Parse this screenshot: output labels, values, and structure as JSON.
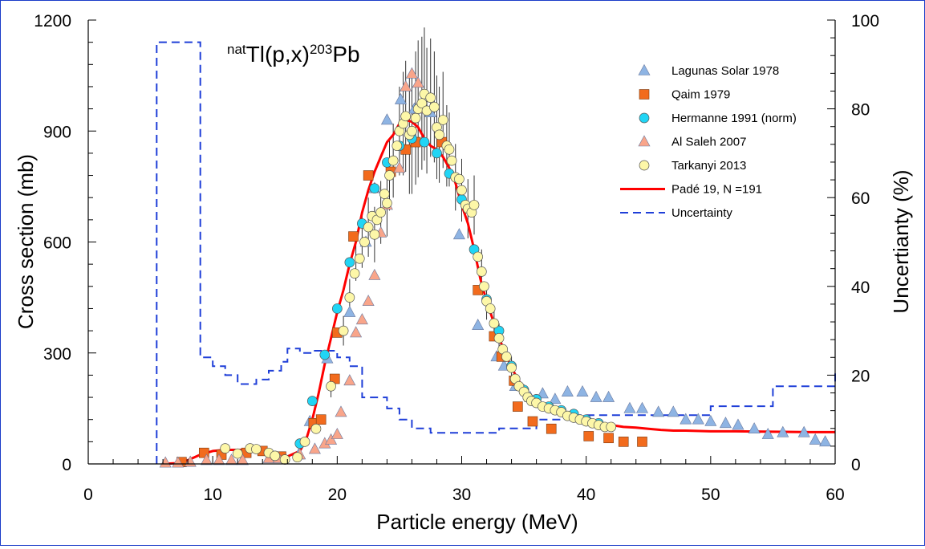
{
  "chart_data": {
    "type": "scatter",
    "title": {
      "sup1": "nat",
      "main1": "Tl(p,x)",
      "sup2": "203",
      "main2": "Pb"
    },
    "xlabel": "Particle energy (MeV)",
    "ylabel": "Cross section (mb)",
    "y2label": "Uncertianty (%)",
    "xlim": [
      0,
      60
    ],
    "ylim": [
      0,
      1200
    ],
    "y2lim": [
      0,
      100
    ],
    "x_ticks": [
      0,
      10,
      20,
      30,
      40,
      50,
      60
    ],
    "y_ticks": [
      0,
      300,
      600,
      900,
      1200
    ],
    "y2_ticks": [
      0,
      20,
      40,
      60,
      80,
      100
    ],
    "legend_position": "top-right",
    "colors": {
      "lagunas": "#8eb4e3",
      "qaim": "#f26b1d",
      "hermanne": "#21d5f5",
      "alsaleh": "#f9a58a",
      "tarkanyi": "#fdf7a8",
      "fit": "#ff0000",
      "uncertainty": "#1f3fd8",
      "frame": "#1a3cc8"
    },
    "series": [
      {
        "name": "Lagunas Solar 1978",
        "marker": "triangle",
        "color_key": "lagunas",
        "points": [
          [
            16.9,
            25
          ],
          [
            17.8,
            115
          ],
          [
            19.2,
            285
          ],
          [
            21.0,
            410
          ],
          [
            22.3,
            600
          ],
          [
            23.0,
            745
          ],
          [
            24.0,
            930
          ],
          [
            25.1,
            985
          ],
          [
            26.2,
            960
          ],
          [
            27.5,
            950
          ],
          [
            29.8,
            620
          ],
          [
            31.3,
            375
          ],
          [
            32.8,
            290
          ],
          [
            33.4,
            265
          ],
          [
            34.3,
            210
          ],
          [
            35.5,
            180
          ],
          [
            36.5,
            190
          ],
          [
            37.5,
            175
          ],
          [
            38.5,
            195
          ],
          [
            39.7,
            195
          ],
          [
            40.8,
            180
          ],
          [
            41.8,
            180
          ],
          [
            43.5,
            150
          ],
          [
            44.5,
            150
          ],
          [
            45.8,
            140
          ],
          [
            47.0,
            140
          ],
          [
            48.0,
            120
          ],
          [
            49.0,
            120
          ],
          [
            50.0,
            115
          ],
          [
            51.2,
            110
          ],
          [
            52.2,
            105
          ],
          [
            53.5,
            95
          ],
          [
            54.6,
            80
          ],
          [
            55.8,
            85
          ],
          [
            57.5,
            85
          ],
          [
            58.4,
            65
          ],
          [
            59.2,
            60
          ]
        ]
      },
      {
        "name": "Qaim 1979",
        "marker": "square",
        "color_key": "qaim",
        "points": [
          [
            7.5,
            5
          ],
          [
            9.3,
            30
          ],
          [
            10.7,
            25
          ],
          [
            12.7,
            30
          ],
          [
            14.0,
            35
          ],
          [
            15.5,
            20
          ],
          [
            18.1,
            110
          ],
          [
            18.7,
            120
          ],
          [
            19.8,
            230
          ],
          [
            20.0,
            355
          ],
          [
            21.3,
            615
          ],
          [
            22.5,
            780
          ],
          [
            24.3,
            790
          ],
          [
            25.5,
            850
          ],
          [
            26.3,
            870
          ],
          [
            28.4,
            870
          ],
          [
            31.3,
            470
          ],
          [
            32.6,
            345
          ],
          [
            33.2,
            290
          ],
          [
            34.2,
            225
          ],
          [
            34.5,
            155
          ],
          [
            35.7,
            115
          ],
          [
            37.2,
            95
          ],
          [
            40.2,
            75
          ],
          [
            41.8,
            70
          ],
          [
            43.0,
            60
          ],
          [
            44.5,
            60
          ]
        ]
      },
      {
        "name": "Hermanne 1991 (norm)",
        "marker": "circle",
        "color_key": "hermanne",
        "points": [
          [
            17.0,
            55
          ],
          [
            18.0,
            170
          ],
          [
            19.0,
            295
          ],
          [
            20.0,
            420
          ],
          [
            21.0,
            545
          ],
          [
            22.0,
            650
          ],
          [
            23.0,
            745
          ],
          [
            24.0,
            815
          ],
          [
            25.0,
            860
          ],
          [
            26.0,
            880
          ],
          [
            27.0,
            870
          ],
          [
            28.0,
            840
          ],
          [
            29.0,
            785
          ],
          [
            30.0,
            715
          ],
          [
            31.0,
            580
          ],
          [
            32.0,
            445
          ],
          [
            33.0,
            360
          ],
          [
            34.0,
            265
          ],
          [
            35.0,
            200
          ],
          [
            36.0,
            175
          ],
          [
            37.0,
            155
          ],
          [
            38.0,
            145
          ],
          [
            39.0,
            135
          ],
          [
            40.0,
            120
          ],
          [
            41.0,
            110
          ]
        ]
      },
      {
        "name": "Al Saleh 2007",
        "marker": "triangle",
        "color_key": "alsaleh",
        "points": [
          [
            6.2,
            3
          ],
          [
            7.2,
            3
          ],
          [
            8.2,
            5
          ],
          [
            9.5,
            10
          ],
          [
            10.5,
            10
          ],
          [
            11.5,
            10
          ],
          [
            12.4,
            10
          ],
          [
            14.5,
            15
          ],
          [
            15.3,
            15
          ],
          [
            17.0,
            25
          ],
          [
            18.2,
            40
          ],
          [
            19.0,
            55
          ],
          [
            19.5,
            65
          ],
          [
            20.0,
            80
          ],
          [
            20.3,
            140
          ],
          [
            21.0,
            225
          ],
          [
            21.5,
            355
          ],
          [
            22.0,
            390
          ],
          [
            22.5,
            440
          ],
          [
            23.0,
            510
          ],
          [
            23.5,
            625
          ],
          [
            24.0,
            700
          ],
          [
            25.0,
            800
          ],
          [
            25.5,
            1020
          ],
          [
            26.0,
            1055
          ],
          [
            26.5,
            1030
          ],
          [
            27.0,
            960
          ]
        ]
      },
      {
        "name": "Tarkanyi 2013",
        "marker": "circle",
        "color_key": "tarkanyi",
        "points": [
          [
            11.0,
            42
          ],
          [
            12.0,
            28
          ],
          [
            13.0,
            42
          ],
          [
            13.5,
            40
          ],
          [
            14.5,
            30
          ],
          [
            15.0,
            22
          ],
          [
            15.8,
            12
          ],
          [
            16.8,
            18
          ],
          [
            17.4,
            60
          ],
          [
            18.3,
            95
          ],
          [
            19.5,
            210
          ],
          [
            20.5,
            360
          ],
          [
            21.0,
            450
          ],
          [
            21.4,
            515
          ],
          [
            21.8,
            555
          ],
          [
            22.2,
            600
          ],
          [
            22.5,
            640
          ],
          [
            22.8,
            670
          ],
          [
            23.0,
            620
          ],
          [
            23.2,
            660
          ],
          [
            23.5,
            680
          ],
          [
            23.8,
            730
          ],
          [
            24.0,
            705
          ],
          [
            24.2,
            780
          ],
          [
            24.5,
            820
          ],
          [
            24.8,
            860
          ],
          [
            25.0,
            900
          ],
          [
            25.3,
            920
          ],
          [
            25.5,
            940
          ],
          [
            25.8,
            890
          ],
          [
            26.0,
            900
          ],
          [
            26.3,
            935
          ],
          [
            26.5,
            960
          ],
          [
            26.8,
            975
          ],
          [
            27.0,
            1000
          ],
          [
            27.2,
            955
          ],
          [
            27.5,
            990
          ],
          [
            27.8,
            965
          ],
          [
            28.0,
            910
          ],
          [
            28.2,
            890
          ],
          [
            28.5,
            930
          ],
          [
            28.8,
            860
          ],
          [
            29.0,
            850
          ],
          [
            29.2,
            820
          ],
          [
            29.5,
            775
          ],
          [
            29.8,
            770
          ],
          [
            30.0,
            740
          ],
          [
            30.3,
            700
          ],
          [
            30.5,
            690
          ],
          [
            30.8,
            680
          ],
          [
            31.0,
            700
          ],
          [
            31.3,
            560
          ],
          [
            31.6,
            520
          ],
          [
            31.8,
            480
          ],
          [
            32.0,
            440
          ],
          [
            32.3,
            420
          ],
          [
            32.6,
            380
          ],
          [
            33.0,
            340
          ],
          [
            33.3,
            310
          ],
          [
            33.6,
            290
          ],
          [
            34.0,
            260
          ],
          [
            34.3,
            230
          ],
          [
            34.6,
            210
          ],
          [
            35.0,
            195
          ],
          [
            35.3,
            180
          ],
          [
            35.6,
            170
          ],
          [
            36.0,
            165
          ],
          [
            36.5,
            155
          ],
          [
            37.0,
            150
          ],
          [
            37.5,
            145
          ],
          [
            38.0,
            140
          ],
          [
            38.5,
            130
          ],
          [
            39.0,
            125
          ],
          [
            39.5,
            120
          ],
          [
            40.0,
            115
          ],
          [
            40.5,
            110
          ],
          [
            41.0,
            105
          ],
          [
            41.5,
            100
          ],
          [
            42.0,
            100
          ]
        ]
      }
    ],
    "error_points": [
      [
        22.5,
        640,
        80
      ],
      [
        23.0,
        620,
        75
      ],
      [
        23.5,
        680,
        85
      ],
      [
        24.0,
        705,
        90
      ],
      [
        24.2,
        780,
        95
      ],
      [
        24.5,
        820,
        100
      ],
      [
        25.0,
        900,
        120
      ],
      [
        25.3,
        920,
        140
      ],
      [
        25.5,
        940,
        150
      ],
      [
        25.8,
        890,
        160
      ],
      [
        26.0,
        900,
        170
      ],
      [
        26.3,
        935,
        180
      ],
      [
        26.5,
        960,
        185
      ],
      [
        26.8,
        975,
        180
      ],
      [
        27.0,
        1000,
        180
      ],
      [
        27.2,
        955,
        170
      ],
      [
        27.5,
        990,
        160
      ],
      [
        27.8,
        965,
        150
      ],
      [
        28.0,
        910,
        140
      ],
      [
        28.2,
        890,
        130
      ],
      [
        28.5,
        930,
        130
      ],
      [
        28.8,
        860,
        110
      ],
      [
        29.0,
        850,
        100
      ],
      [
        29.5,
        775,
        90
      ],
      [
        30.0,
        740,
        85
      ],
      [
        30.5,
        690,
        80
      ],
      [
        31.0,
        700,
        80
      ],
      [
        31.6,
        520,
        60
      ],
      [
        32.0,
        440,
        50
      ],
      [
        32.6,
        380,
        40
      ],
      [
        33.0,
        340,
        40
      ],
      [
        34.0,
        260,
        30
      ],
      [
        35.0,
        195,
        20
      ],
      [
        22.0,
        600,
        70
      ],
      [
        21.5,
        555,
        60
      ],
      [
        21.0,
        450,
        50
      ],
      [
        20.5,
        360,
        40
      ],
      [
        19.5,
        210,
        30
      ]
    ],
    "fit": {
      "name": "Padé 19, N =191",
      "x": [
        6,
        7,
        8,
        9,
        10,
        11,
        12,
        13,
        14,
        15,
        16,
        17,
        17.5,
        18,
        18.5,
        19,
        19.5,
        20,
        20.5,
        21,
        21.5,
        22,
        22.5,
        23,
        23.5,
        24,
        24.5,
        25,
        25.5,
        26,
        26.5,
        27,
        27.5,
        28,
        28.5,
        29,
        29.5,
        30,
        30.5,
        31,
        31.5,
        32,
        32.5,
        33,
        33.5,
        34,
        34.5,
        35,
        36,
        37,
        38,
        39,
        40,
        41,
        42,
        43,
        44,
        45,
        46,
        47,
        48,
        50,
        52,
        55,
        58,
        60
      ],
      "y": [
        0,
        2,
        10,
        25,
        35,
        38,
        38,
        38,
        30,
        25,
        20,
        35,
        65,
        120,
        190,
        270,
        340,
        410,
        470,
        540,
        600,
        680,
        740,
        790,
        830,
        870,
        890,
        920,
        930,
        925,
        910,
        880,
        860,
        850,
        830,
        800,
        760,
        700,
        650,
        580,
        500,
        440,
        390,
        340,
        300,
        260,
        230,
        200,
        170,
        150,
        135,
        125,
        115,
        110,
        105,
        100,
        98,
        95,
        92,
        90,
        90,
        88,
        88,
        87,
        86,
        86
      ]
    },
    "uncertainty": {
      "name": "Uncertainty",
      "x": [
        5.5,
        5.5,
        9,
        9,
        10,
        10,
        11,
        11,
        12,
        12,
        13.5,
        13.5,
        14.5,
        14.5,
        15.5,
        15.5,
        16,
        16,
        17,
        17,
        18,
        18,
        20,
        20,
        21,
        21,
        22,
        22,
        24,
        24,
        25,
        25,
        26,
        26,
        27.5,
        27.5,
        33,
        33,
        36,
        36,
        38,
        38,
        40,
        40,
        50,
        50,
        55,
        55,
        60,
        60
      ],
      "y2": [
        0,
        95,
        95,
        24,
        24,
        22,
        22,
        20,
        20,
        18,
        18,
        19,
        19,
        21,
        21,
        23,
        23,
        26,
        26,
        25,
        25,
        25.5,
        25.5,
        24,
        24,
        22,
        22,
        15,
        15,
        12.5,
        12.5,
        10,
        10,
        8,
        8,
        7,
        7,
        8,
        8,
        10,
        10,
        11,
        11,
        11,
        11,
        13,
        13,
        17.5,
        17.5,
        21
      ]
    }
  }
}
